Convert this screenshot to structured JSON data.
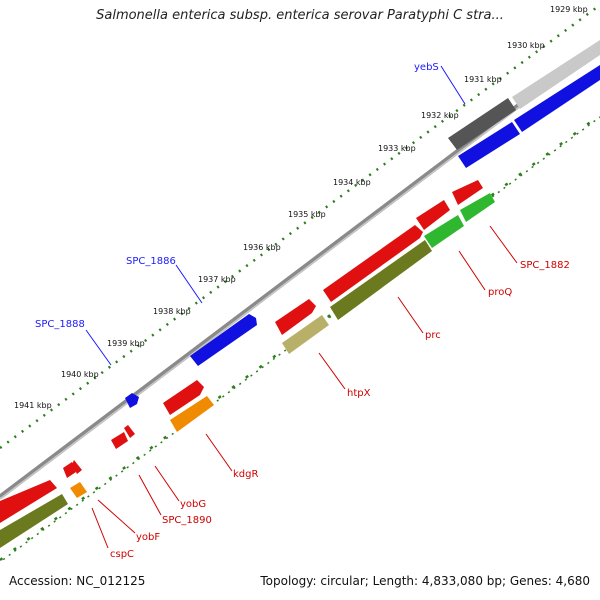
{
  "title": "Salmonella enterica subsp. enterica serovar Paratyphi C stra...",
  "footer": {
    "accession": "Accession: NC_012125",
    "topology": "Topology: circular; Length: 4,833,080 bp; Genes: 4,680"
  },
  "tick_labels": [
    "1929 kbp",
    "1930 kbp",
    "1931 kbp",
    "1932 kbp",
    "1933 kbp",
    "1934 kbp",
    "1935 kbp",
    "1936 kbp",
    "1937 kbp",
    "1938 kbp",
    "1939 kbp",
    "1940 kbp",
    "1941 kbp"
  ],
  "genes": [
    {
      "name": "yebS",
      "label_color": "#1a1aff"
    },
    {
      "name": "SPC_1886",
      "label_color": "#1a1aff"
    },
    {
      "name": "SPC_1888",
      "label_color": "#1a1aff"
    },
    {
      "name": "SPC_1882",
      "label_color": "#d00000"
    },
    {
      "name": "proQ",
      "label_color": "#d00000"
    },
    {
      "name": "prc",
      "label_color": "#d00000"
    },
    {
      "name": "htpX",
      "label_color": "#d00000"
    },
    {
      "name": "kdgR",
      "label_color": "#d00000"
    },
    {
      "name": "yobG",
      "label_color": "#d00000"
    },
    {
      "name": "SPC_1890",
      "label_color": "#d00000"
    },
    {
      "name": "yobF",
      "label_color": "#d00000"
    },
    {
      "name": "cspC",
      "label_color": "#d00000"
    }
  ],
  "colors": {
    "forward_cds": "#1010e0",
    "reverse_cds": "#e01010",
    "backbone": "#7a7a7a",
    "tick_marks": "#2e7d1e",
    "gc_high": "#6b7a1e",
    "gc_light": "#b8b068",
    "gc_green": "#2fb82f",
    "gc_orange": "#f08a00",
    "gray_feature": "#555555"
  }
}
